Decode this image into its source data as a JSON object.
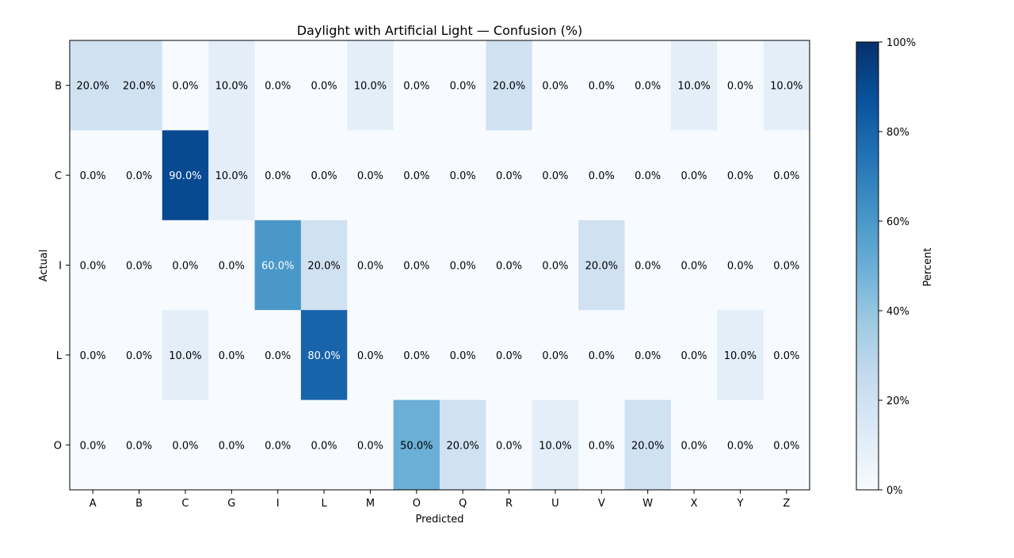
{
  "chart_data": {
    "type": "heatmap",
    "title": "Daylight with Artificial Light — Confusion (%)",
    "xlabel": "Predicted",
    "ylabel": "Actual",
    "x_categories": [
      "A",
      "B",
      "C",
      "G",
      "I",
      "L",
      "M",
      "O",
      "Q",
      "R",
      "U",
      "V",
      "W",
      "X",
      "Y",
      "Z"
    ],
    "y_categories": [
      "B",
      "C",
      "I",
      "L",
      "O"
    ],
    "values": [
      [
        20.0,
        20.0,
        0.0,
        10.0,
        0.0,
        0.0,
        10.0,
        0.0,
        0.0,
        20.0,
        0.0,
        0.0,
        0.0,
        10.0,
        0.0,
        10.0
      ],
      [
        0.0,
        0.0,
        90.0,
        10.0,
        0.0,
        0.0,
        0.0,
        0.0,
        0.0,
        0.0,
        0.0,
        0.0,
        0.0,
        0.0,
        0.0,
        0.0
      ],
      [
        0.0,
        0.0,
        0.0,
        0.0,
        60.0,
        20.0,
        0.0,
        0.0,
        0.0,
        0.0,
        0.0,
        20.0,
        0.0,
        0.0,
        0.0,
        0.0
      ],
      [
        0.0,
        0.0,
        10.0,
        0.0,
        0.0,
        80.0,
        0.0,
        0.0,
        0.0,
        0.0,
        0.0,
        0.0,
        0.0,
        0.0,
        10.0,
        0.0
      ],
      [
        0.0,
        0.0,
        0.0,
        0.0,
        0.0,
        0.0,
        0.0,
        50.0,
        20.0,
        0.0,
        10.0,
        0.0,
        20.0,
        0.0,
        0.0,
        0.0
      ]
    ],
    "value_format_suffix": "%",
    "colorbar": {
      "label": "Percent",
      "range": [
        0,
        100
      ],
      "ticks": [
        "0%",
        "20%",
        "40%",
        "60%",
        "80%",
        "100%"
      ],
      "colormap": "Blues"
    }
  }
}
